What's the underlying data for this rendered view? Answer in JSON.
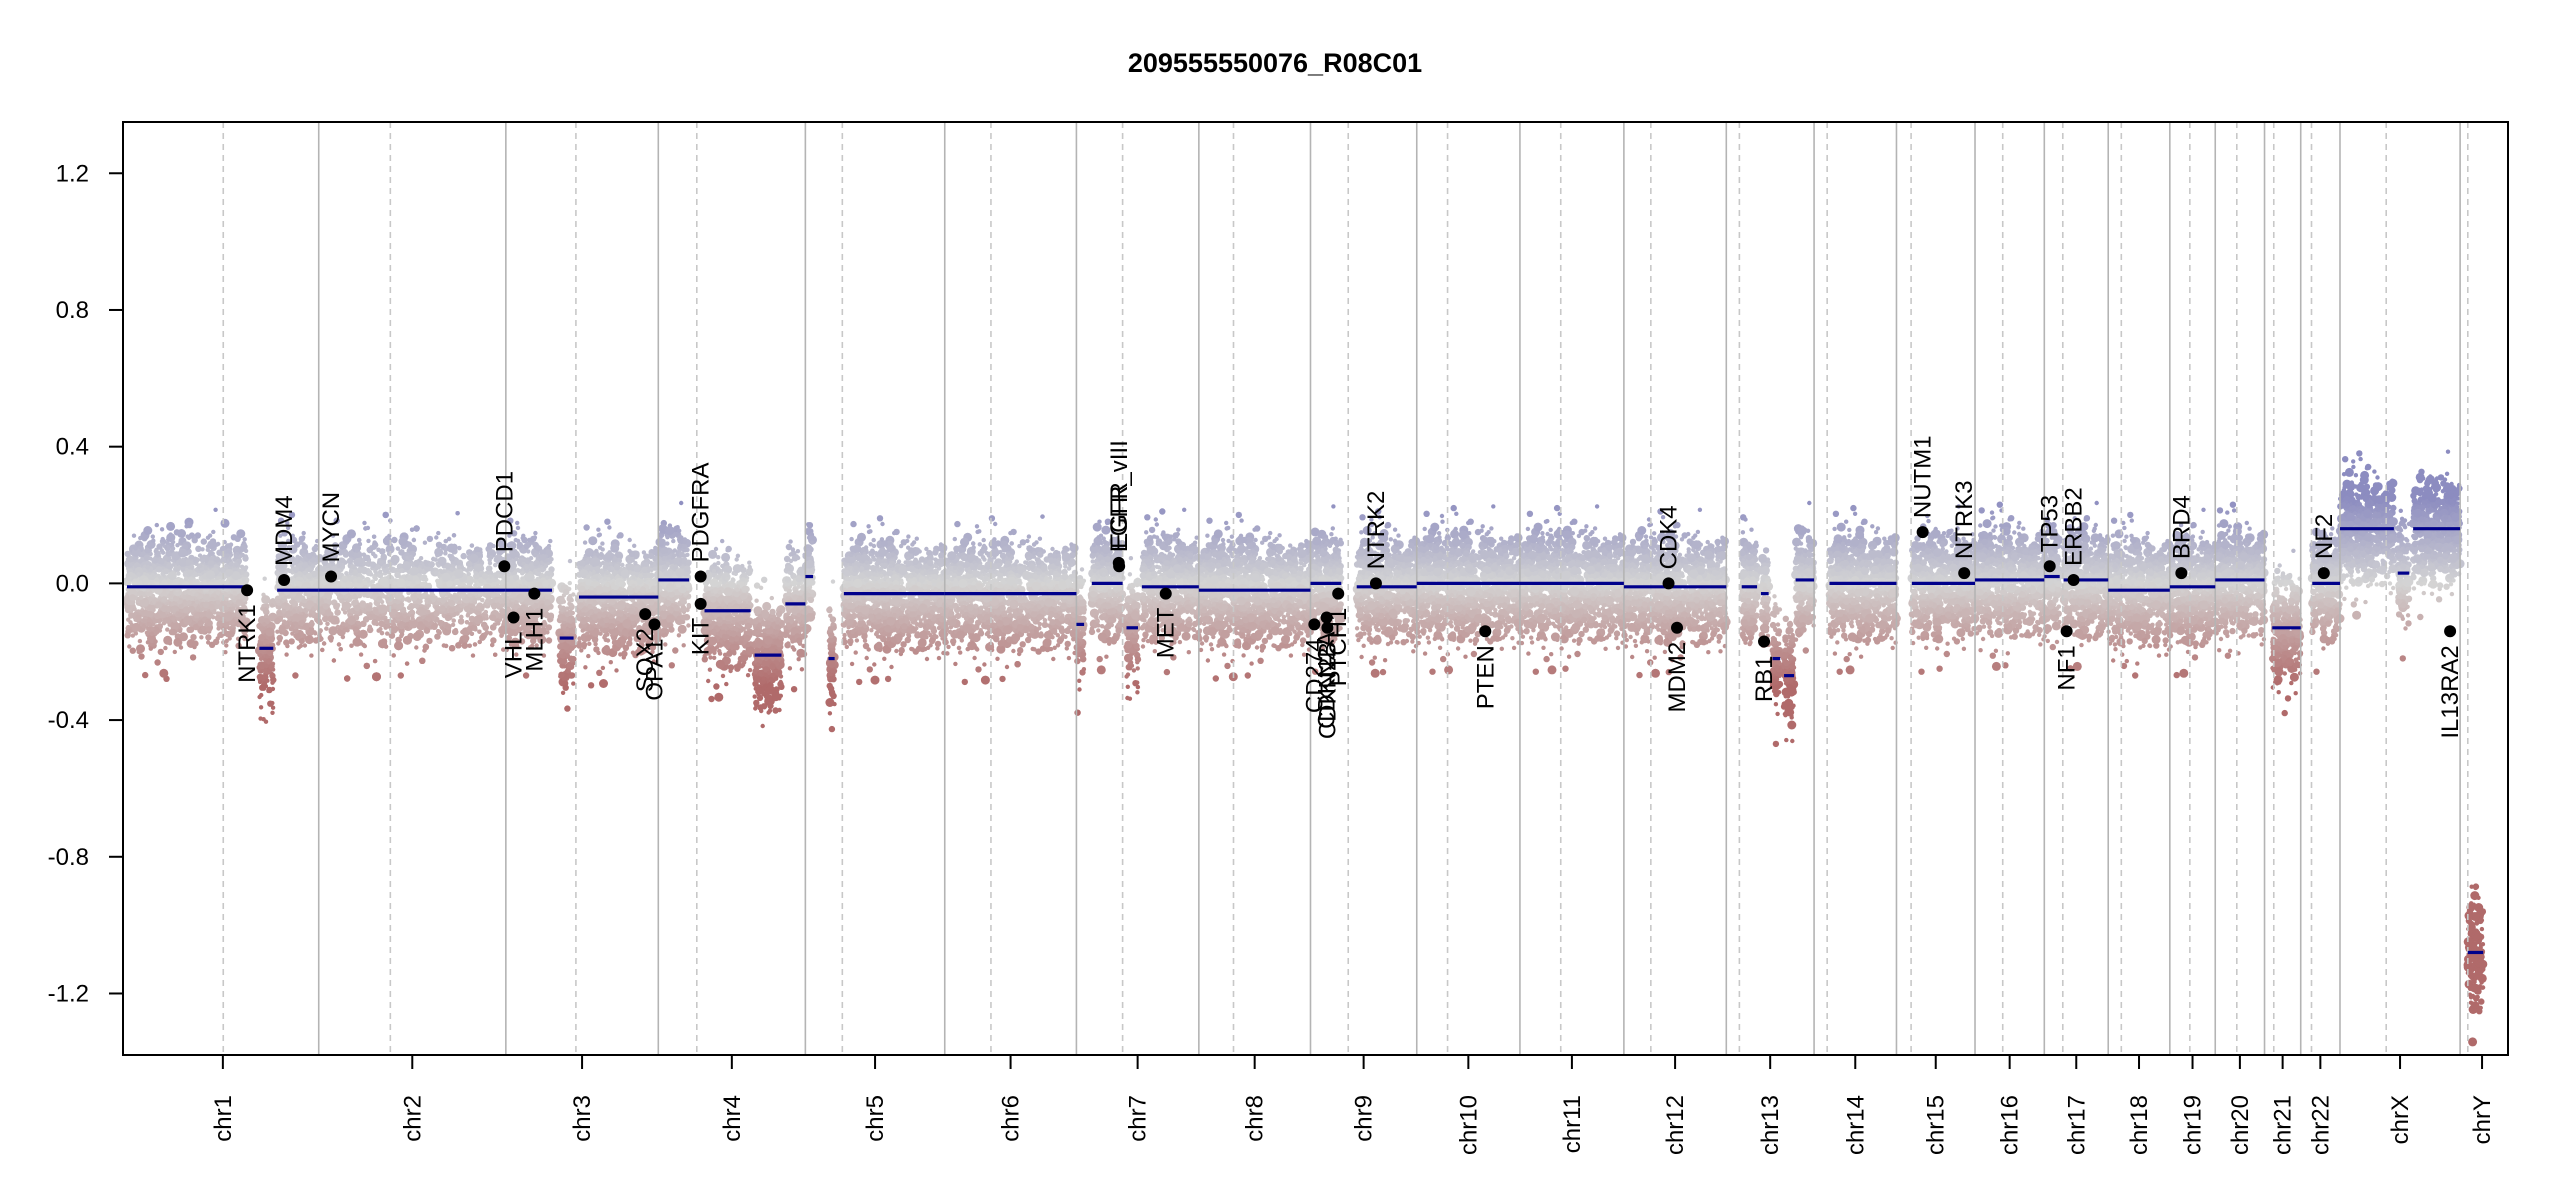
{
  "chart_data": {
    "type": "scatter",
    "title": "209555550076_R08C01",
    "xlabel": "",
    "ylabel": "",
    "ylim": [
      -1.38,
      1.35
    ],
    "yticks": [
      -1.2,
      -0.8,
      -0.4,
      0.0,
      0.4,
      0.8,
      1.2
    ],
    "grid": false,
    "colors": {
      "high": "#8c8cc0",
      "mid": "#d4d4d4",
      "low": "#b06a6a",
      "segment": "#00008b",
      "gene_point": "#000000",
      "chrom_boundary": "#b4b4b4",
      "centromere": "#c8c8c8"
    },
    "chromosomes": [
      {
        "name": "chr1",
        "size": 249,
        "cen": 125
      },
      {
        "name": "chr2",
        "size": 243,
        "cen": 93
      },
      {
        "name": "chr3",
        "size": 198,
        "cen": 91
      },
      {
        "name": "chr4",
        "size": 191,
        "cen": 50
      },
      {
        "name": "chr5",
        "size": 181,
        "cen": 48
      },
      {
        "name": "chr6",
        "size": 171,
        "cen": 60
      },
      {
        "name": "chr7",
        "size": 159,
        "cen": 60
      },
      {
        "name": "chr8",
        "size": 145,
        "cen": 45
      },
      {
        "name": "chr9",
        "size": 138,
        "cen": 49
      },
      {
        "name": "chr10",
        "size": 134,
        "cen": 40
      },
      {
        "name": "chr11",
        "size": 135,
        "cen": 53
      },
      {
        "name": "chr12",
        "size": 133,
        "cen": 35
      },
      {
        "name": "chr13",
        "size": 114,
        "cen": 17
      },
      {
        "name": "chr14",
        "size": 107,
        "cen": 17
      },
      {
        "name": "chr15",
        "size": 102,
        "cen": 19
      },
      {
        "name": "chr16",
        "size": 90,
        "cen": 36
      },
      {
        "name": "chr17",
        "size": 83,
        "cen": 24
      },
      {
        "name": "chr18",
        "size": 80,
        "cen": 17
      },
      {
        "name": "chr19",
        "size": 59,
        "cen": 26
      },
      {
        "name": "chr20",
        "size": 64,
        "cen": 28
      },
      {
        "name": "chr21",
        "size": 47,
        "cen": 12
      },
      {
        "name": "chr22",
        "size": 51,
        "cen": 14
      },
      {
        "name": "chrX",
        "size": 156,
        "cen": 60
      },
      {
        "name": "chrY",
        "size": 57,
        "cen": 10
      }
    ],
    "series": [
      {
        "name": "segments",
        "values": [
          {
            "chr": "chr1",
            "start": 0,
            "end": 155,
            "y": -0.01
          },
          {
            "chr": "chr1",
            "start": 172,
            "end": 190,
            "y": -0.19
          },
          {
            "chr": "chr1",
            "start": 195,
            "end": 249,
            "y": -0.02
          },
          {
            "chr": "chr2",
            "start": 0,
            "end": 243,
            "y": -0.02
          },
          {
            "chr": "chr3",
            "start": 0,
            "end": 60,
            "y": -0.02
          },
          {
            "chr": "chr3",
            "start": 70,
            "end": 88,
            "y": -0.16
          },
          {
            "chr": "chr3",
            "start": 95,
            "end": 198,
            "y": -0.04
          },
          {
            "chr": "chr4",
            "start": 0,
            "end": 40,
            "y": 0.01
          },
          {
            "chr": "chr4",
            "start": 60,
            "end": 120,
            "y": -0.08
          },
          {
            "chr": "chr4",
            "start": 125,
            "end": 160,
            "y": -0.21
          },
          {
            "chr": "chr4",
            "start": 165,
            "end": 191,
            "y": -0.06
          },
          {
            "chr": "chr5",
            "start": 0,
            "end": 10,
            "y": 0.02
          },
          {
            "chr": "chr5",
            "start": 30,
            "end": 38,
            "y": -0.22
          },
          {
            "chr": "chr5",
            "start": 50,
            "end": 181,
            "y": -0.03
          },
          {
            "chr": "chr6",
            "start": 0,
            "end": 171,
            "y": -0.03
          },
          {
            "chr": "chr7",
            "start": 0,
            "end": 10,
            "y": -0.12
          },
          {
            "chr": "chr7",
            "start": 20,
            "end": 60,
            "y": 0.0
          },
          {
            "chr": "chr7",
            "start": 65,
            "end": 80,
            "y": -0.13
          },
          {
            "chr": "chr7",
            "start": 85,
            "end": 159,
            "y": -0.01
          },
          {
            "chr": "chr8",
            "start": 0,
            "end": 145,
            "y": -0.02
          },
          {
            "chr": "chr9",
            "start": 0,
            "end": 40,
            "y": 0.0
          },
          {
            "chr": "chr9",
            "start": 60,
            "end": 138,
            "y": -0.01
          },
          {
            "chr": "chr10",
            "start": 0,
            "end": 134,
            "y": 0.0
          },
          {
            "chr": "chr11",
            "start": 0,
            "end": 135,
            "y": 0.0
          },
          {
            "chr": "chr12",
            "start": 0,
            "end": 133,
            "y": -0.01
          },
          {
            "chr": "chr13",
            "start": 20,
            "end": 40,
            "y": -0.01
          },
          {
            "chr": "chr13",
            "start": 45,
            "end": 55,
            "y": -0.03
          },
          {
            "chr": "chr13",
            "start": 60,
            "end": 70,
            "y": -0.22
          },
          {
            "chr": "chr13",
            "start": 75,
            "end": 88,
            "y": -0.27
          },
          {
            "chr": "chr13",
            "start": 90,
            "end": 114,
            "y": 0.01
          },
          {
            "chr": "chr14",
            "start": 20,
            "end": 107,
            "y": 0.0
          },
          {
            "chr": "chr15",
            "start": 20,
            "end": 102,
            "y": 0.0
          },
          {
            "chr": "chr16",
            "start": 0,
            "end": 90,
            "y": 0.01
          },
          {
            "chr": "chr17",
            "start": 0,
            "end": 20,
            "y": 0.02
          },
          {
            "chr": "chr17",
            "start": 25,
            "end": 83,
            "y": 0.01
          },
          {
            "chr": "chr18",
            "start": 0,
            "end": 80,
            "y": -0.02
          },
          {
            "chr": "chr19",
            "start": 0,
            "end": 59,
            "y": -0.01
          },
          {
            "chr": "chr20",
            "start": 0,
            "end": 64,
            "y": 0.01
          },
          {
            "chr": "chr21",
            "start": 10,
            "end": 47,
            "y": -0.13
          },
          {
            "chr": "chr22",
            "start": 15,
            "end": 51,
            "y": 0.0
          },
          {
            "chr": "chrX",
            "start": 0,
            "end": 70,
            "y": 0.16
          },
          {
            "chr": "chrX",
            "start": 75,
            "end": 90,
            "y": 0.03
          },
          {
            "chr": "chrX",
            "start": 95,
            "end": 156,
            "y": 0.16
          },
          {
            "chr": "chrY",
            "start": 10,
            "end": 30,
            "y": -1.08
          }
        ]
      },
      {
        "name": "genes",
        "values": [
          {
            "label": "NTRK1",
            "chr": "chr1",
            "pos": 156,
            "y": -0.02,
            "side": "below"
          },
          {
            "label": "MDM4",
            "chr": "chr1",
            "pos": 204,
            "y": 0.01,
            "side": "above"
          },
          {
            "label": "MYCN",
            "chr": "chr2",
            "pos": 16,
            "y": 0.02,
            "side": "above"
          },
          {
            "label": "PDCD1",
            "chr": "chr2",
            "pos": 241,
            "y": 0.05,
            "side": "above"
          },
          {
            "label": "VHL",
            "chr": "chr3",
            "pos": 10,
            "y": -0.1,
            "side": "below"
          },
          {
            "label": "MLH1",
            "chr": "chr3",
            "pos": 37,
            "y": -0.03,
            "side": "below"
          },
          {
            "label": "SOX2",
            "chr": "chr3",
            "pos": 181,
            "y": -0.09,
            "side": "below"
          },
          {
            "label": "OPA1",
            "chr": "chr3",
            "pos": 193,
            "y": -0.12,
            "side": "below"
          },
          {
            "label": "KIT",
            "chr": "chr4",
            "pos": 55,
            "y": -0.06,
            "side": "below"
          },
          {
            "label": "PDGFRA",
            "chr": "chr4",
            "pos": 55,
            "y": 0.02,
            "side": "above"
          },
          {
            "label": "EGFR",
            "chr": "chr7",
            "pos": 55,
            "y": 0.06,
            "side": "above"
          },
          {
            "label": "EGFR_vIII",
            "chr": "chr7",
            "pos": 55.5,
            "y": 0.05,
            "side": "above"
          },
          {
            "label": "MET",
            "chr": "chr7",
            "pos": 116,
            "y": -0.03,
            "side": "below"
          },
          {
            "label": "CD274",
            "chr": "chr9",
            "pos": 5,
            "y": -0.12,
            "side": "below"
          },
          {
            "label": "CDKN2A",
            "chr": "chr9",
            "pos": 21,
            "y": -0.1,
            "side": "below"
          },
          {
            "label": "CDKN2B",
            "chr": "chr9",
            "pos": 22,
            "y": -0.13,
            "side": "below"
          },
          {
            "label": "PTCH1",
            "chr": "chr9",
            "pos": 36,
            "y": -0.03,
            "side": "below"
          },
          {
            "label": "NTRK2",
            "chr": "chr9",
            "pos": 85,
            "y": 0.0,
            "side": "above"
          },
          {
            "label": "PTEN",
            "chr": "chr10",
            "pos": 89,
            "y": -0.14,
            "side": "below"
          },
          {
            "label": "CDK4",
            "chr": "chr12",
            "pos": 58,
            "y": 0.0,
            "side": "above"
          },
          {
            "label": "MDM2",
            "chr": "chr12",
            "pos": 69,
            "y": -0.13,
            "side": "below"
          },
          {
            "label": "RB1",
            "chr": "chr13",
            "pos": 49,
            "y": -0.17,
            "side": "below"
          },
          {
            "label": "NUTM1",
            "chr": "chr15",
            "pos": 34,
            "y": 0.15,
            "side": "above"
          },
          {
            "label": "NTRK3",
            "chr": "chr15",
            "pos": 88,
            "y": 0.03,
            "side": "above"
          },
          {
            "label": "TP53",
            "chr": "chr17",
            "pos": 7,
            "y": 0.05,
            "side": "above"
          },
          {
            "label": "NF1",
            "chr": "chr17",
            "pos": 29,
            "y": -0.14,
            "side": "below"
          },
          {
            "label": "ERBB2",
            "chr": "chr17",
            "pos": 38,
            "y": 0.01,
            "side": "above"
          },
          {
            "label": "BRD4",
            "chr": "chr19",
            "pos": 15,
            "y": 0.03,
            "side": "above"
          },
          {
            "label": "NF2",
            "chr": "chr22",
            "pos": 30,
            "y": 0.03,
            "side": "above"
          },
          {
            "label": "IL13RA2",
            "chr": "chrX",
            "pos": 143,
            "y": -0.14,
            "side": "below"
          }
        ]
      }
    ]
  }
}
